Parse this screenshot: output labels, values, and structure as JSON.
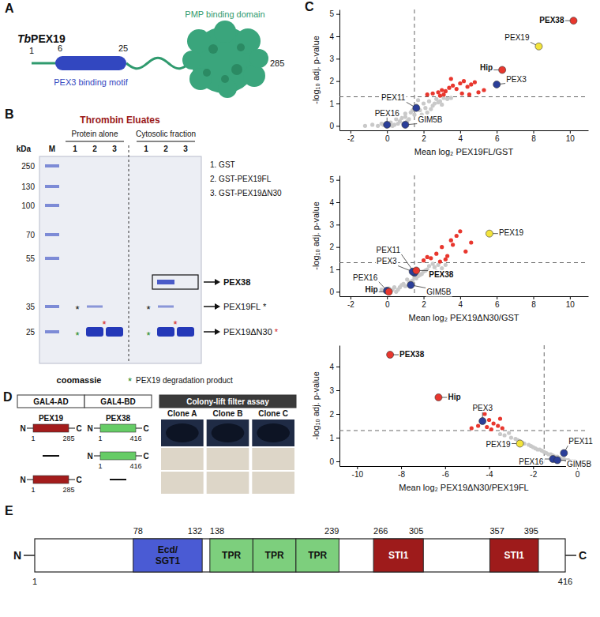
{
  "panel_letters": [
    "A",
    "B",
    "C",
    "D",
    "E"
  ],
  "panel_a": {
    "species": "Tb",
    "protein": "PEX19",
    "residues": [
      1,
      6,
      25,
      285
    ],
    "motif": "PEX3 binding motif",
    "domain": "PMP binding domain"
  },
  "panel_b": {
    "title": "Thrombin Eluates",
    "groups": [
      "Protein alone",
      "Cytosolic fraction"
    ],
    "lanes": [
      "1",
      "2",
      "3"
    ],
    "marker_lane": "M",
    "unit": "kDa",
    "markers": [
      250,
      130,
      100,
      70,
      55,
      35,
      25
    ],
    "key": [
      "1. GST",
      "2. GST-PEX19FL",
      "3. GST-PEX19ΔN30"
    ],
    "bands": [
      {
        "label": "PEX38"
      },
      {
        "label": "PEX19FL",
        "asterisk": "*"
      },
      {
        "label": "PEX19ΔN30",
        "asterisk": "*"
      }
    ],
    "stain": "coomassie",
    "footnote": {
      "symbol": "*",
      "text": "PEX19 degradation product"
    }
  },
  "chart_data": [
    {
      "type": "scatter",
      "x_label": "Mean log₂ PEX19FL/GST",
      "y_label": "-log₁₀ adj. p-value",
      "xlim": [
        -2.6,
        11
      ],
      "xticks": [
        -2,
        0,
        2,
        4,
        6,
        8,
        10
      ],
      "ylim": [
        -0.2,
        5.2
      ],
      "yticks": [
        0,
        1,
        2,
        3,
        4,
        5
      ],
      "grid": false,
      "x_threshold": 1.5,
      "y_threshold": 1.3,
      "series": [
        {
          "color": "#c9c9c9",
          "marker": "circle",
          "x": [
            -1.2,
            -0.8,
            -0.5,
            -0.3,
            0.0,
            0.2,
            0.4,
            0.5,
            0.7,
            0.9,
            1.0,
            1.2,
            1.3,
            1.5,
            1.6,
            1.8,
            2.0,
            2.1,
            2.3,
            2.5,
            2.7,
            2.9,
            3.1,
            3.3,
            0.3,
            0.6,
            1.1,
            1.4,
            1.9,
            2.2,
            2.6,
            3.0,
            -0.2,
            0.8,
            1.7,
            2.4,
            2.8,
            3.5,
            0.1,
            1.0
          ],
          "values": [
            0.0,
            0.05,
            0.0,
            0.1,
            0.0,
            0.15,
            0.05,
            0.3,
            0.2,
            0.1,
            0.4,
            0.3,
            0.6,
            0.5,
            0.9,
            0.7,
            1.0,
            0.8,
            1.1,
            0.9,
            1.2,
            1.1,
            1.25,
            1.2,
            0.0,
            0.1,
            0.2,
            0.7,
            0.5,
            0.6,
            1.0,
            0.95,
            0.05,
            0.35,
            1.15,
            0.75,
            1.05,
            1.25,
            0.0,
            0.55
          ]
        },
        {
          "color": "#e8372e",
          "marker": "circle",
          "x": [
            2.2,
            2.5,
            2.8,
            3.0,
            3.2,
            3.4,
            3.6,
            3.8,
            4.0,
            4.2,
            4.4,
            4.6,
            4.8,
            5.0,
            3.1,
            3.5,
            4.1,
            2.9,
            5.3,
            4.5
          ],
          "values": [
            1.4,
            1.45,
            1.5,
            1.6,
            1.55,
            1.7,
            1.8,
            1.65,
            1.9,
            2.0,
            1.75,
            1.85,
            1.95,
            1.5,
            1.4,
            2.1,
            1.45,
            1.35,
            1.6,
            1.4
          ]
        }
      ],
      "annotations": [
        {
          "text": "PEX38",
          "x": 10.2,
          "y": 4.7,
          "color": "#e8372e"
        },
        {
          "text": "PEX19",
          "x": 8.3,
          "y": 3.55,
          "color": "#f3e43c"
        },
        {
          "text": "Hip",
          "x": 6.3,
          "y": 2.5,
          "color": "#e8372e"
        },
        {
          "text": "PEX3",
          "x": 6.0,
          "y": 1.85,
          "color": "#2b3f99"
        },
        {
          "text": "PEX11",
          "x": 1.6,
          "y": 0.8,
          "color": "#2b3f99"
        },
        {
          "text": "PEX16",
          "x": 0.0,
          "y": 0.05,
          "color": "#2b3f99"
        },
        {
          "text": "GIM5B",
          "x": 1.0,
          "y": 0.05,
          "color": "#2b3f99"
        }
      ]
    },
    {
      "type": "scatter",
      "x_label": "Mean log₂ PEX19ΔN30/GST",
      "y_label": "-log₁₀ adj. p-value",
      "xlim": [
        -2.6,
        11
      ],
      "xticks": [
        -2,
        0,
        2,
        4,
        6,
        8,
        10
      ],
      "ylim": [
        -0.2,
        5.2
      ],
      "yticks": [
        0,
        1,
        2,
        3,
        4,
        5
      ],
      "grid": false,
      "x_threshold": 1.5,
      "y_threshold": 1.3,
      "series": [
        {
          "color": "#c9c9c9",
          "marker": "circle",
          "x": [
            -1.0,
            -0.6,
            -0.3,
            0.0,
            0.2,
            0.4,
            0.6,
            0.8,
            1.0,
            1.2,
            1.4,
            1.6,
            1.8,
            2.0,
            2.2,
            2.4,
            2.6,
            2.8,
            3.0,
            0.1,
            0.5,
            0.9,
            1.3,
            1.7,
            2.1,
            2.5,
            -0.1,
            0.7,
            1.1,
            1.9,
            2.3,
            0.3,
            1.5,
            2.7,
            3.2
          ],
          "values": [
            0.0,
            0.05,
            0.1,
            0.0,
            0.05,
            0.2,
            0.1,
            0.3,
            0.25,
            0.4,
            0.5,
            0.6,
            0.75,
            0.9,
            1.0,
            0.85,
            1.1,
            1.2,
            1.05,
            0.15,
            0.0,
            0.35,
            0.45,
            0.7,
            0.95,
            1.25,
            0.0,
            0.2,
            0.55,
            0.8,
            1.15,
            0.1,
            0.65,
            0.9,
            1.2
          ]
        },
        {
          "color": "#e8372e",
          "marker": "circle",
          "x": [
            2.0,
            2.4,
            2.7,
            3.0,
            3.3,
            3.5,
            3.8,
            4.0,
            4.3,
            2.9,
            3.6,
            4.6,
            3.2,
            2.2
          ],
          "values": [
            1.4,
            1.5,
            1.7,
            2.0,
            1.6,
            2.3,
            2.5,
            2.7,
            1.8,
            1.35,
            2.1,
            2.2,
            1.45,
            1.55
          ]
        }
      ],
      "annotations": [
        {
          "text": "PEX19",
          "x": 5.6,
          "y": 2.6,
          "color": "#f3e43c"
        },
        {
          "text": "PEX11",
          "x": 1.5,
          "y": 0.85,
          "color": "#2b3f99"
        },
        {
          "text": "PEX3",
          "x": 1.4,
          "y": 0.9,
          "color": "#2b3f99"
        },
        {
          "text": "PEX38",
          "x": 1.6,
          "y": 0.95,
          "color": "#e8372e"
        },
        {
          "text": "PEX16",
          "x": 0.0,
          "y": 0.05,
          "color": "#2b3f99"
        },
        {
          "text": "GIM5B",
          "x": 1.3,
          "y": 0.3,
          "color": "#2b3f99"
        },
        {
          "text": "Hip",
          "x": 0.1,
          "y": 0.0,
          "color": "#e8372e"
        }
      ]
    },
    {
      "type": "scatter",
      "x_label": "Mean log₂ PEX19ΔN30/PEX19FL",
      "y_label": "-log₁₀ adj. p-value",
      "xlim": [
        -10.8,
        0.5
      ],
      "xticks": [
        -10,
        -8,
        -6,
        -4,
        -2,
        0
      ],
      "ylim": [
        -0.2,
        4.9
      ],
      "yticks": [
        0,
        1,
        2,
        3,
        4
      ],
      "grid": false,
      "x_threshold": -1.5,
      "y_threshold": 1.3,
      "series": [
        {
          "color": "#c9c9c9",
          "marker": "circle",
          "x": [
            -0.2,
            -0.4,
            -0.6,
            -0.8,
            -1.0,
            -1.2,
            -1.4,
            -1.6,
            -1.8,
            -2.0,
            -2.2,
            -2.5,
            -2.8,
            -3.0,
            -3.3,
            -0.3,
            -0.7,
            -1.1,
            -1.5,
            -1.9,
            -2.4,
            -2.7,
            -3.1,
            -0.5,
            -0.9,
            -1.3,
            -1.7,
            -2.1,
            -2.6,
            -3.5,
            -0.1,
            -1.0
          ],
          "values": [
            0.0,
            0.05,
            0.1,
            0.15,
            0.2,
            0.3,
            0.35,
            0.45,
            0.5,
            0.6,
            0.7,
            0.8,
            0.95,
            1.0,
            1.1,
            0.0,
            0.1,
            0.25,
            0.4,
            0.55,
            0.75,
            0.9,
            1.2,
            0.05,
            0.2,
            0.3,
            0.5,
            0.65,
            0.85,
            1.15,
            0.0,
            0.1
          ]
        },
        {
          "color": "#e8372e",
          "marker": "circle",
          "x": [
            -3.4,
            -3.6,
            -3.8,
            -4.0,
            -4.2,
            -4.5,
            -3.9,
            -4.1,
            -3.5,
            -4.8
          ],
          "values": [
            1.4,
            1.5,
            1.6,
            1.75,
            2.0,
            1.5,
            1.35,
            1.45,
            1.8,
            1.4
          ]
        }
      ],
      "annotations": [
        {
          "text": "PEX38",
          "x": -8.5,
          "y": 4.5,
          "color": "#e8372e"
        },
        {
          "text": "Hip",
          "x": -6.3,
          "y": 2.7,
          "color": "#e8372e"
        },
        {
          "text": "PEX3",
          "x": -4.3,
          "y": 1.7,
          "color": "#2b3f99"
        },
        {
          "text": "PEX19",
          "x": -2.6,
          "y": 0.75,
          "color": "#f3e43c"
        },
        {
          "text": "PEX11",
          "x": -0.6,
          "y": 0.35,
          "color": "#2b3f99"
        },
        {
          "text": "PEX16",
          "x": -1.1,
          "y": 0.1,
          "color": "#2b3f99"
        },
        {
          "text": "GIM5B",
          "x": -0.9,
          "y": 0.05,
          "color": "#2b3f99"
        }
      ]
    }
  ],
  "panel_d": {
    "columns": [
      "GAL4-AD",
      "GAL4-BD",
      "Colony-lift filter assay"
    ],
    "clones": [
      "Clone A",
      "Clone B",
      "Clone C"
    ],
    "termini": [
      "N",
      "C"
    ],
    "constructs": [
      {
        "name": "PEX19",
        "start": 1,
        "end": 285,
        "color": "#a31c1c"
      },
      {
        "name": "PEX38",
        "start": 1,
        "end": 416,
        "color": "#66cc66"
      }
    ],
    "rows": [
      {
        "ad": 0,
        "bd": 1,
        "signal": true
      },
      {
        "ad": null,
        "bd": 1,
        "signal": false
      },
      {
        "ad": 0,
        "bd": null,
        "signal": false
      }
    ]
  },
  "panel_e": {
    "start": 1,
    "end": 416,
    "termini": [
      "N",
      "C"
    ],
    "domains": [
      {
        "label": "Ecd/SGT1",
        "start": 78,
        "end": 132,
        "color": "#4a5bd4"
      },
      {
        "label": "TPR",
        "start": 138,
        "end": 239,
        "repeats": 3,
        "color": "#7dcf7d"
      },
      {
        "label": "STI1",
        "start": 266,
        "end": 305,
        "color": "#9e1b1b"
      },
      {
        "label": "STI1",
        "start": 357,
        "end": 395,
        "color": "#9e1b1b"
      }
    ]
  }
}
